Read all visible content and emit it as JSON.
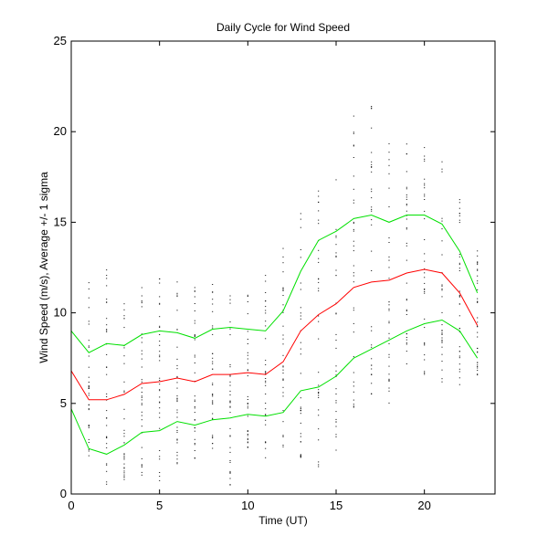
{
  "chart_data": {
    "type": "line",
    "title": "Daily Cycle for Wind Speed",
    "xlabel": "Time (UT)",
    "ylabel": "Wind Speed (m/s), Average +/- 1 sigma",
    "xlim": [
      0,
      24
    ],
    "ylim": [
      0,
      25
    ],
    "xticks": [
      0,
      5,
      10,
      15,
      20
    ],
    "yticks": [
      0,
      5,
      10,
      15,
      20,
      25
    ],
    "grid": false,
    "colors": {
      "mean": "#ff0000",
      "sigma": "#00e000",
      "points": "#000000",
      "axes": "#000000"
    },
    "x": [
      0,
      1,
      2,
      3,
      4,
      5,
      6,
      7,
      8,
      9,
      10,
      11,
      12,
      13,
      14,
      15,
      16,
      17,
      18,
      19,
      20,
      21,
      22,
      23
    ],
    "series": [
      {
        "name": "Average + 1 sigma",
        "role": "sigma",
        "values": [
          9.0,
          7.8,
          8.3,
          8.2,
          8.8,
          9.0,
          8.9,
          8.6,
          9.1,
          9.2,
          9.1,
          9.0,
          10.1,
          12.3,
          14.0,
          14.5,
          15.2,
          15.4,
          15.0,
          15.4,
          15.4,
          14.9,
          13.4,
          11.1
        ]
      },
      {
        "name": "Average",
        "role": "mean",
        "values": [
          6.8,
          5.2,
          5.2,
          5.5,
          6.1,
          6.2,
          6.4,
          6.2,
          6.6,
          6.6,
          6.7,
          6.6,
          7.3,
          9.0,
          9.9,
          10.5,
          11.4,
          11.7,
          11.8,
          12.2,
          12.4,
          12.2,
          11.1,
          9.3
        ]
      },
      {
        "name": "Average - 1 sigma",
        "role": "sigma",
        "values": [
          4.7,
          2.5,
          2.2,
          2.7,
          3.4,
          3.5,
          4.0,
          3.8,
          4.1,
          4.2,
          4.4,
          4.3,
          4.5,
          5.7,
          5.9,
          6.5,
          7.5,
          8.0,
          8.5,
          9.0,
          9.4,
          9.6,
          9.0,
          7.5
        ]
      }
    ],
    "point_ranges": [
      [
        4.5,
        9.5
      ],
      [
        1.8,
        12.2
      ],
      [
        0.5,
        12.5
      ],
      [
        0.8,
        11.8
      ],
      [
        1.0,
        11.8
      ],
      [
        0.6,
        12.0
      ],
      [
        1.5,
        12.2
      ],
      [
        1.8,
        11.8
      ],
      [
        2.2,
        12.0
      ],
      [
        0.5,
        11.0
      ],
      [
        2.5,
        11.5
      ],
      [
        2.0,
        13.5
      ],
      [
        2.5,
        14.0
      ],
      [
        2.0,
        15.5
      ],
      [
        1.5,
        17.0
      ],
      [
        2.0,
        17.5
      ],
      [
        4.0,
        21.8
      ],
      [
        5.5,
        21.7
      ],
      [
        5.0,
        19.8
      ],
      [
        7.0,
        19.8
      ],
      [
        6.5,
        19.5
      ],
      [
        6.0,
        18.5
      ],
      [
        6.0,
        16.5
      ],
      [
        6.5,
        13.8
      ]
    ]
  }
}
